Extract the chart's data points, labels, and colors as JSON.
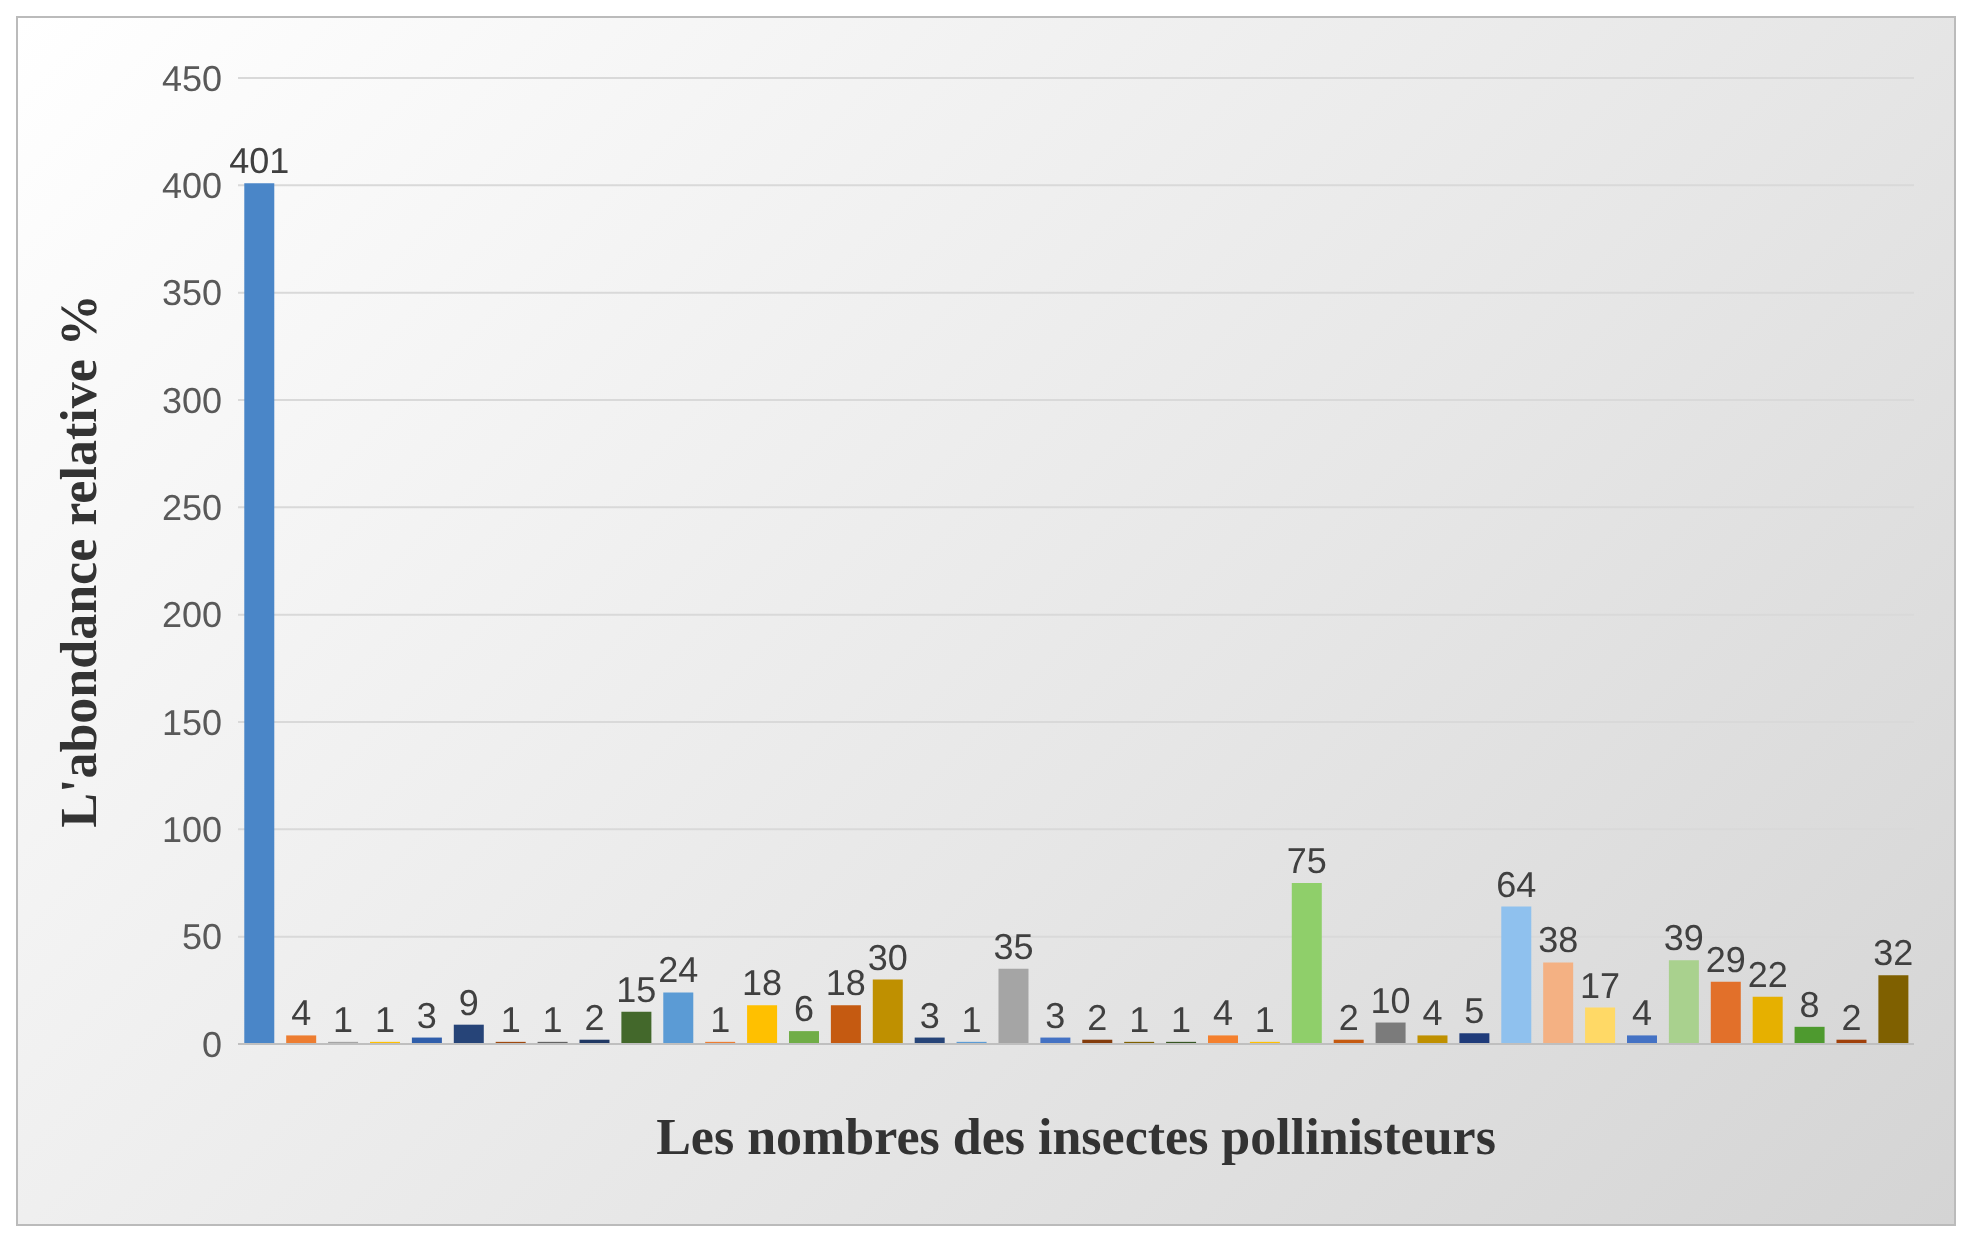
{
  "chart_data": {
    "type": "bar",
    "xlabel": "Les nombres des insectes pollinisteurs",
    "ylabel": "L'abondance relative %",
    "categories": [
      null,
      null,
      null,
      null,
      null,
      null,
      null,
      null,
      null,
      null,
      null,
      null,
      null,
      null,
      null,
      null,
      null,
      null,
      null,
      null,
      null,
      null,
      null,
      null,
      null,
      null,
      null,
      null,
      null,
      null,
      null,
      null,
      null,
      null,
      null,
      null,
      null,
      null,
      null,
      null
    ],
    "values": [
      401,
      4,
      1,
      1,
      3,
      9,
      1,
      1,
      2,
      15,
      24,
      1,
      18,
      6,
      18,
      30,
      3,
      1,
      35,
      3,
      2,
      1,
      1,
      4,
      1,
      75,
      2,
      10,
      4,
      5,
      64,
      38,
      17,
      4,
      39,
      29,
      22,
      8,
      2,
      32
    ],
    "colors": [
      "#4a86c8",
      "#ed7d31",
      "#a5a5a5",
      "#ffc000",
      "#2f5eab",
      "#264478",
      "#9e480e",
      "#636363",
      "#203864",
      "#43682b",
      "#5b9bd5",
      "#ed7d31",
      "#ffc000",
      "#70ad47",
      "#c55a11",
      "#bf9000",
      "#264478",
      "#5b9bd5",
      "#a5a5a5",
      "#4472c4",
      "#843c0c",
      "#7f6000",
      "#375623",
      "#f4802e",
      "#ffc000",
      "#8fcf6a",
      "#c55a11",
      "#7b7b7b",
      "#bf9000",
      "#1f3b7a",
      "#8fc1ee",
      "#f4b183",
      "#ffd966",
      "#4472c4",
      "#a9d18e",
      "#e2702a",
      "#e6b000",
      "#4e9a2f",
      "#a0400a",
      "#7f6000"
    ],
    "ylim": [
      0,
      450
    ],
    "yticks": [
      0,
      50,
      100,
      150,
      200,
      250,
      300,
      350,
      400,
      450
    ],
    "grid": "y",
    "data_labels": true,
    "tick_labels": "y"
  }
}
